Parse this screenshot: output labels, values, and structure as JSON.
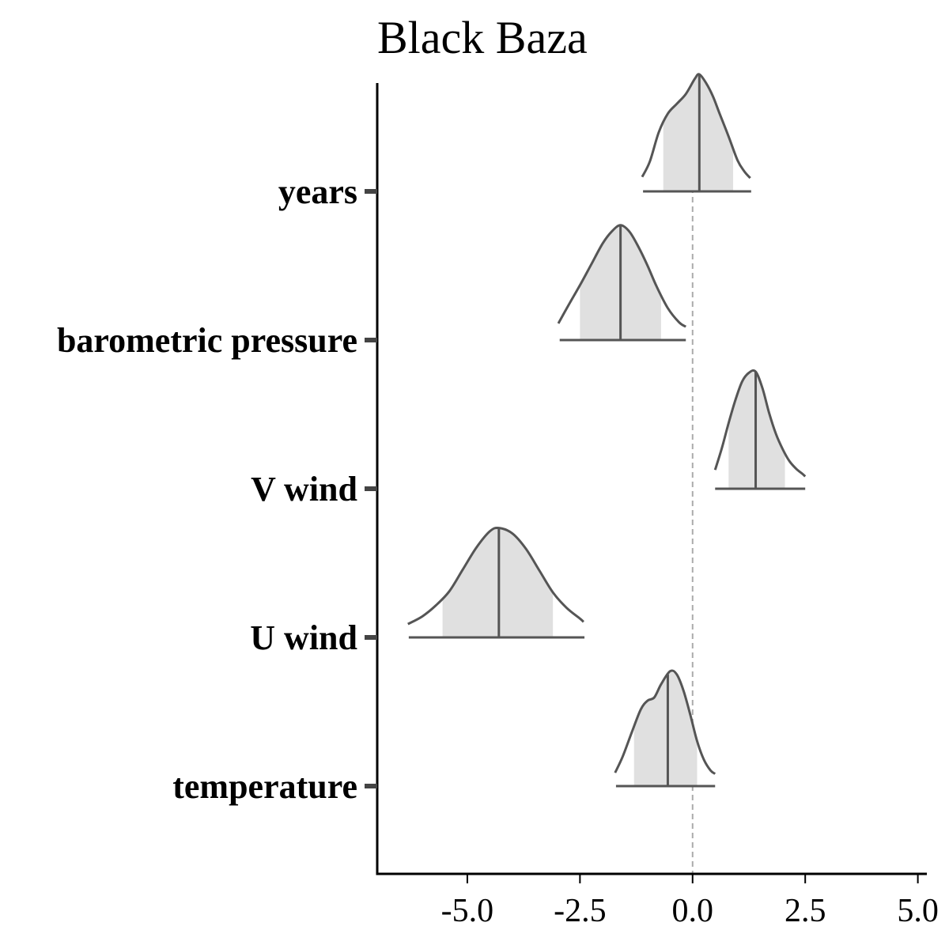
{
  "chart_data": {
    "type": "ridgeline",
    "title": "Black Baza",
    "xlabel": "",
    "ylabel": "",
    "xlim": [
      -7.0,
      5.2
    ],
    "x_ticks": [
      -5.0,
      -2.5,
      0.0,
      2.5,
      5.0
    ],
    "x_tick_labels": [
      "-5.0",
      "-2.5",
      "0.0",
      "2.5",
      "5.0"
    ],
    "reference_line": 0.0,
    "grid": false,
    "colors": {
      "fill": "#e0e0e0",
      "line": "#555555",
      "axis": "#000000",
      "reference": "#aaaaaa"
    },
    "series": [
      {
        "name": "years",
        "median": 0.15,
        "inner": [
          -0.65,
          0.9
        ],
        "outer": [
          -1.1,
          1.3
        ],
        "density": {
          "x": [
            -1.12,
            -0.95,
            -0.75,
            -0.55,
            -0.35,
            -0.15,
            0.05,
            0.15,
            0.3,
            0.45,
            0.6,
            0.8,
            1.0,
            1.15,
            1.28
          ],
          "y": [
            0.06,
            0.2,
            0.47,
            0.64,
            0.73,
            0.82,
            0.96,
            1.0,
            0.92,
            0.8,
            0.64,
            0.43,
            0.21,
            0.11,
            0.05
          ]
        }
      },
      {
        "name": "barometric pressure",
        "median": -1.6,
        "inner": [
          -2.5,
          -0.7
        ],
        "outer": [
          -2.95,
          -0.15
        ],
        "density": {
          "x": [
            -2.98,
            -2.75,
            -2.5,
            -2.25,
            -2.0,
            -1.8,
            -1.6,
            -1.4,
            -1.2,
            -1.0,
            -0.8,
            -0.55,
            -0.3,
            -0.15
          ],
          "y": [
            0.08,
            0.25,
            0.43,
            0.62,
            0.81,
            0.92,
            0.98,
            0.92,
            0.78,
            0.61,
            0.42,
            0.22,
            0.09,
            0.05
          ]
        }
      },
      {
        "name": "V wind",
        "median": 1.4,
        "inner": [
          0.8,
          2.05
        ],
        "outer": [
          0.5,
          2.5
        ],
        "density": {
          "x": [
            0.5,
            0.65,
            0.8,
            0.95,
            1.1,
            1.25,
            1.4,
            1.55,
            1.7,
            1.85,
            2.0,
            2.15,
            2.3,
            2.45,
            2.5
          ],
          "y": [
            0.1,
            0.3,
            0.53,
            0.74,
            0.91,
            0.99,
            1.0,
            0.85,
            0.62,
            0.43,
            0.29,
            0.18,
            0.11,
            0.06,
            0.04
          ]
        }
      },
      {
        "name": "U wind",
        "median": -4.3,
        "inner": [
          -5.55,
          -3.1
        ],
        "outer": [
          -6.3,
          -2.4
        ],
        "density": {
          "x": [
            -6.32,
            -6.0,
            -5.7,
            -5.4,
            -5.1,
            -4.8,
            -4.5,
            -4.3,
            -4.0,
            -3.7,
            -3.4,
            -3.1,
            -2.8,
            -2.5,
            -2.42
          ],
          "y": [
            0.05,
            0.12,
            0.22,
            0.35,
            0.55,
            0.75,
            0.9,
            0.93,
            0.88,
            0.74,
            0.54,
            0.34,
            0.2,
            0.1,
            0.07
          ]
        }
      },
      {
        "name": "temperature",
        "median": -0.55,
        "inner": [
          -1.3,
          0.1
        ],
        "outer": [
          -1.7,
          0.5
        ],
        "density": {
          "x": [
            -1.72,
            -1.55,
            -1.35,
            -1.15,
            -1.0,
            -0.85,
            -0.7,
            -0.5,
            -0.35,
            -0.2,
            -0.05,
            0.1,
            0.25,
            0.4,
            0.5
          ],
          "y": [
            0.05,
            0.2,
            0.42,
            0.63,
            0.71,
            0.74,
            0.86,
            0.98,
            0.95,
            0.8,
            0.58,
            0.34,
            0.17,
            0.07,
            0.04
          ]
        }
      }
    ]
  }
}
